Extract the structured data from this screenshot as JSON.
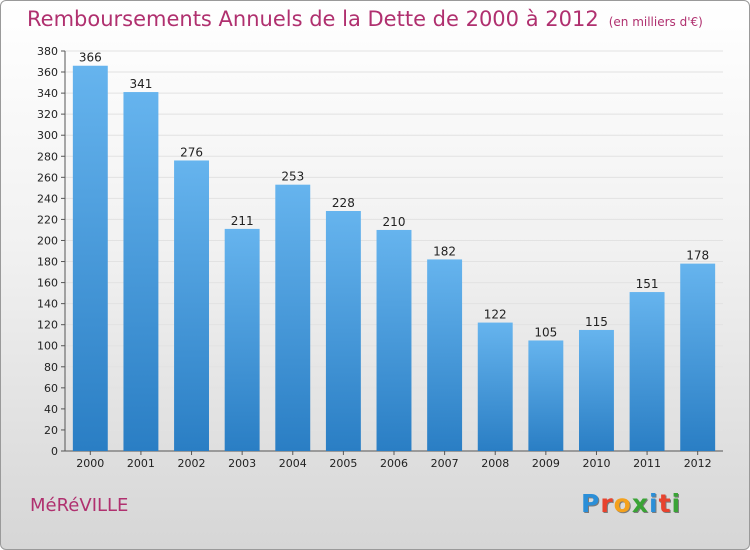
{
  "title": "Remboursements Annuels de la Dette de 2000 à 2012",
  "unit": "(en milliers d'€)",
  "city": "MéRéVILLE",
  "logo": {
    "letters": [
      "P",
      "r",
      "o",
      "x",
      "i",
      "t",
      "i"
    ],
    "colors": [
      "#2b8fd8",
      "#e8432e",
      "#f4a11c",
      "#3aa336",
      "#2b8fd8",
      "#e8432e",
      "#3aa336"
    ]
  },
  "colors": {
    "title": "#b0306f",
    "bar_light": "#66b4ee",
    "bar_dark": "#2a7ec4",
    "grid": "#e2e2e2"
  },
  "chart_data": {
    "type": "bar",
    "categories": [
      "2000",
      "2001",
      "2002",
      "2003",
      "2004",
      "2005",
      "2006",
      "2007",
      "2008",
      "2009",
      "2010",
      "2011",
      "2012"
    ],
    "values": [
      366,
      341,
      276,
      211,
      253,
      228,
      210,
      182,
      122,
      105,
      115,
      151,
      178
    ],
    "ylim": [
      0,
      380
    ],
    "yticks": [
      0,
      20,
      40,
      60,
      80,
      100,
      120,
      140,
      160,
      180,
      200,
      220,
      240,
      260,
      280,
      300,
      320,
      340,
      360,
      380
    ],
    "grid": true,
    "data_labels": true
  }
}
